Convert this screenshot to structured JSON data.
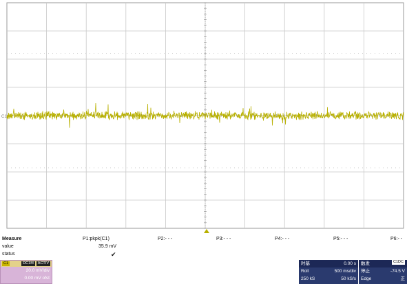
{
  "colors": {
    "trace": "#b8b000",
    "grid": "#c8c8c8",
    "panel": "#2a3a6e",
    "channel_panel": "#d8b4d8"
  },
  "scope": {
    "channel_marker": "C1",
    "trigger_marker_icon": "triangle-up-icon"
  },
  "measure": {
    "title": "Measure",
    "row_value": "value",
    "row_status": "status",
    "p1_name": "P1:pkpk(C1)",
    "p1_value": "35.9 mV",
    "p1_status_icon": "checkmark-icon",
    "p2": "P2:- - -",
    "p3": "P3:- - -",
    "p4": "P4:- - -",
    "p5": "P5:- - -",
    "p6": "P6:- -"
  },
  "channel1": {
    "label": "C1",
    "tag1": "DC1M",
    "tag2": "ACTIV",
    "scale": "20.0 mV/div",
    "offset": "0.00 mV ofst"
  },
  "timebase": {
    "title": "时基",
    "delay": "0.00 s",
    "mode": "Roll",
    "scale": "500 ms/div",
    "samples": "250 kS",
    "rate": "50 kS/s"
  },
  "trigger": {
    "title": "触发",
    "tag": "C1DC",
    "state": "停止",
    "level": "-74.5 V",
    "type": "Edge",
    "slope": "正"
  }
}
